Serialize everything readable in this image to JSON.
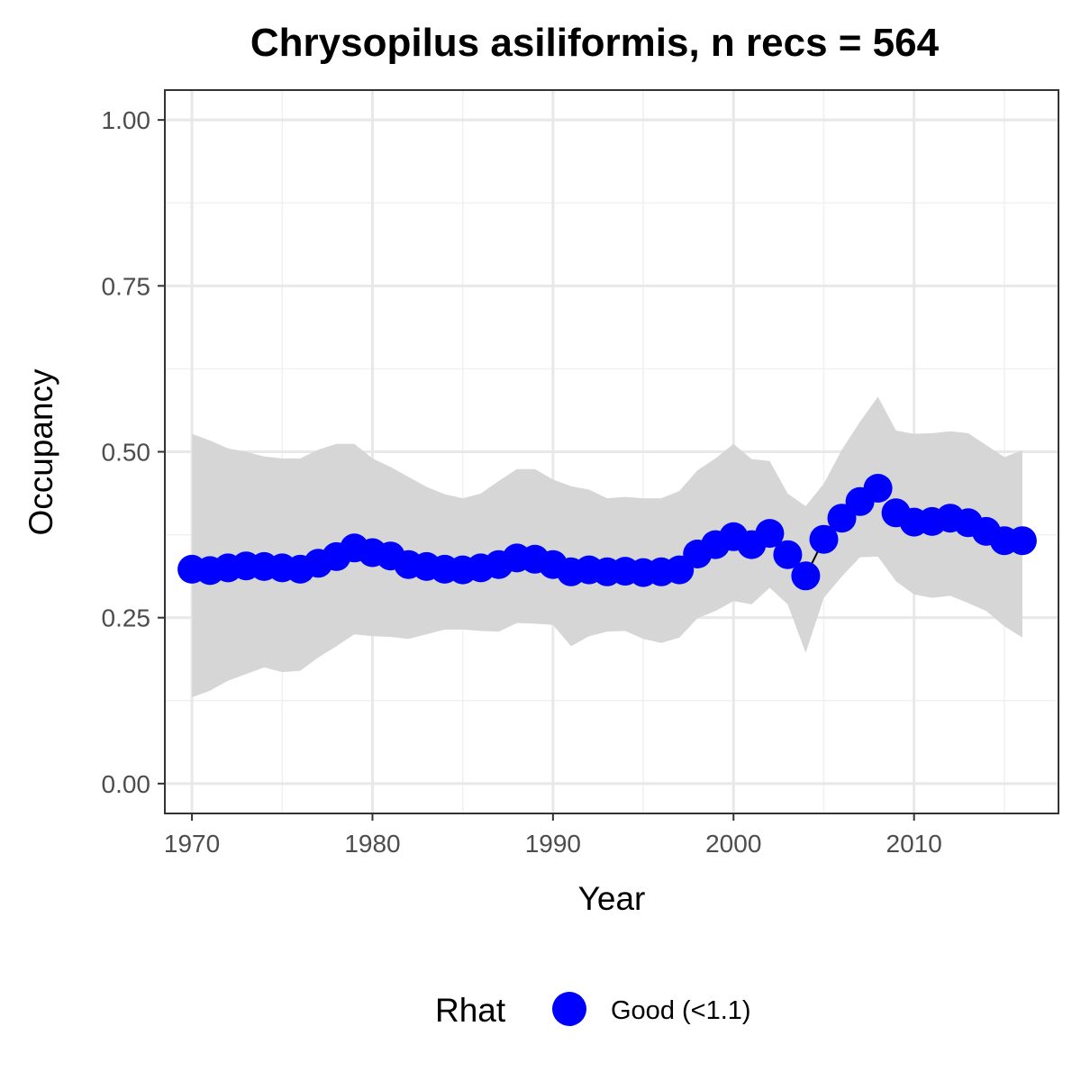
{
  "chart_data": {
    "type": "line",
    "title": "Chrysopilus asiliformis, n recs = 564",
    "xlabel": "Year",
    "ylabel": "Occupancy",
    "xlim": [
      1968.5,
      2018
    ],
    "ylim": [
      -0.045,
      1.045
    ],
    "x_ticks": [
      1970,
      1980,
      1990,
      2000,
      2010
    ],
    "x_tick_labels": [
      "1970",
      "1980",
      "1990",
      "2000",
      "2010"
    ],
    "y_ticks": [
      0,
      0.25,
      0.5,
      0.75,
      1.0
    ],
    "y_tick_labels": [
      "0.00",
      "0.25",
      "0.50",
      "0.75",
      "1.00"
    ],
    "grid": true,
    "legend": {
      "title": "Rhat",
      "position": "bottom",
      "entries": [
        {
          "label": "Good (<1.1)",
          "color": "#0000ff"
        }
      ]
    },
    "colors": {
      "points": "#0000ff",
      "ribbon": "#d6d6d6",
      "gap_segment": "#000000"
    },
    "x": [
      1970,
      1971,
      1972,
      1973,
      1974,
      1975,
      1976,
      1977,
      1978,
      1979,
      1980,
      1981,
      1982,
      1983,
      1984,
      1985,
      1986,
      1987,
      1988,
      1989,
      1990,
      1991,
      1992,
      1993,
      1994,
      1995,
      1996,
      1997,
      1998,
      1999,
      2000,
      2001,
      2002,
      2003,
      2004,
      2005,
      2006,
      2007,
      2008,
      2009,
      2010,
      2011,
      2012,
      2013,
      2014,
      2015,
      2016
    ],
    "series": [
      {
        "values": [
          0.323,
          0.321,
          0.325,
          0.328,
          0.327,
          0.325,
          0.323,
          0.332,
          0.342,
          0.355,
          0.348,
          0.343,
          0.33,
          0.327,
          0.323,
          0.322,
          0.325,
          0.33,
          0.34,
          0.338,
          0.33,
          0.319,
          0.322,
          0.319,
          0.32,
          0.318,
          0.319,
          0.322,
          0.346,
          0.36,
          0.372,
          0.36,
          0.377,
          0.345,
          0.313,
          0.368,
          0.4,
          0.425,
          0.445,
          0.408,
          0.394,
          0.395,
          0.4,
          0.393,
          0.38,
          0.366,
          0.366
        ],
        "lower": [
          0.13,
          0.14,
          0.155,
          0.165,
          0.175,
          0.168,
          0.17,
          0.19,
          0.207,
          0.225,
          0.222,
          0.221,
          0.218,
          0.225,
          0.232,
          0.232,
          0.23,
          0.229,
          0.242,
          0.241,
          0.239,
          0.207,
          0.222,
          0.229,
          0.23,
          0.218,
          0.212,
          0.22,
          0.249,
          0.26,
          0.275,
          0.27,
          0.295,
          0.27,
          0.197,
          0.28,
          0.312,
          0.341,
          0.342,
          0.305,
          0.285,
          0.28,
          0.283,
          0.272,
          0.26,
          0.237,
          0.22
        ],
        "upper": [
          0.527,
          0.517,
          0.505,
          0.5,
          0.493,
          0.49,
          0.49,
          0.503,
          0.512,
          0.512,
          0.49,
          0.477,
          0.462,
          0.447,
          0.436,
          0.43,
          0.437,
          0.456,
          0.474,
          0.474,
          0.458,
          0.448,
          0.443,
          0.43,
          0.432,
          0.43,
          0.43,
          0.441,
          0.472,
          0.49,
          0.512,
          0.489,
          0.486,
          0.437,
          0.418,
          0.452,
          0.503,
          0.545,
          0.583,
          0.532,
          0.527,
          0.528,
          0.531,
          0.528,
          0.51,
          0.492,
          0.502
        ]
      }
    ]
  }
}
